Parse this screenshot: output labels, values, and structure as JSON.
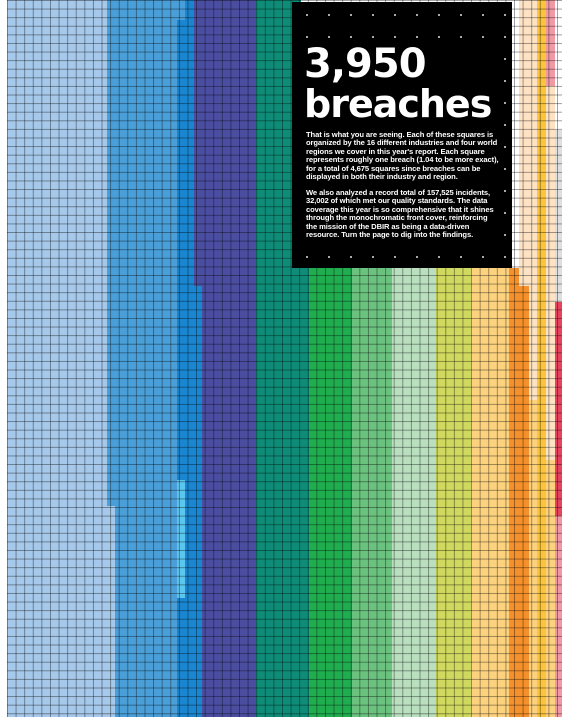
{
  "headline": {
    "number": "3,950",
    "word": "breaches"
  },
  "paragraphs": [
    "That is what you are seeing. Each of these squares is organized by the 16 different industries and four world regions we cover in this year's report. Each square represents roughly one breach (1.04 to be more exact), for a total of 4,675 squares since breaches can be displayed in both their industry and region.",
    "We also analyzed a record total of 157,525 incidents, 32,002 of which met our quality standards. The data coverage this year is so comprehensive that it shines through the monochromatic front cover, reinforcing the mission of the DBIR as being a data-driven resource. Turn the page to dig into the findings."
  ],
  "colors": {
    "light_blue": "#a6c8ea",
    "mid_blue": "#4a9fd8",
    "bright_blue": "#1a86d0",
    "indigo": "#4b4ea0",
    "teal": "#0f8c78",
    "green": "#1fad4f",
    "mid_green": "#6bc27f",
    "pale_green": "#b9dfbf",
    "lime": "#cfd85f",
    "peach": "#fcd27f",
    "orange": "#f5912c",
    "pale_peach": "#fde2c4",
    "yellow": "#fcc43a",
    "pink": "#f19aa6",
    "red": "#e5445c",
    "light_gray": "#dfdfdf",
    "box_black": "#000000"
  }
}
